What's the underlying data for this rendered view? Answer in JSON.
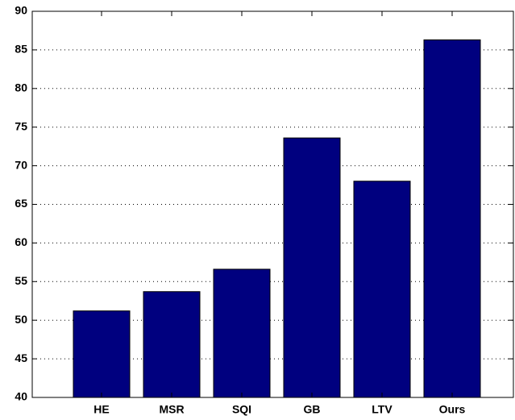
{
  "chart_data": {
    "type": "bar",
    "categories": [
      "HE",
      "MSR",
      "SQI",
      "GB",
      "LTV",
      "Ours"
    ],
    "values": [
      51.2,
      53.7,
      56.6,
      73.6,
      68.0,
      86.3
    ],
    "color": "#00007f",
    "ylim": [
      40,
      90
    ],
    "yticks": [
      40,
      45,
      50,
      55,
      60,
      65,
      70,
      75,
      80,
      85,
      90
    ],
    "grid": true
  }
}
